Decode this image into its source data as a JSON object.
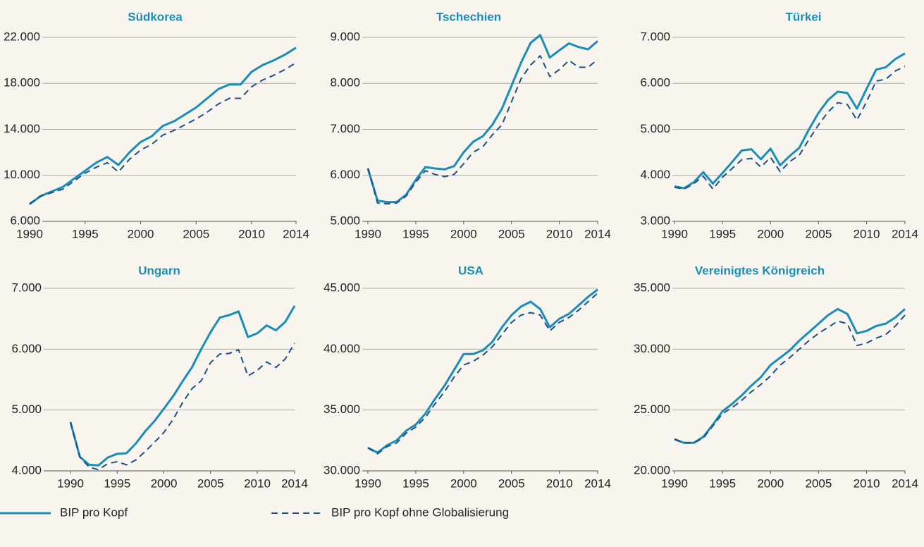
{
  "chart_data": [
    {
      "type": "line",
      "title": "Südkorea",
      "x": [
        1990,
        1991,
        1992,
        1993,
        1994,
        1995,
        1996,
        1997,
        1998,
        1999,
        2000,
        2001,
        2002,
        2003,
        2004,
        2005,
        2006,
        2007,
        2008,
        2009,
        2010,
        2011,
        2012,
        2013,
        2014
      ],
      "xlim": [
        1990,
        2014
      ],
      "xticks": [
        1990,
        1995,
        2000,
        2005,
        2010,
        2014
      ],
      "ylim": [
        6000,
        22000
      ],
      "yticks": [
        {
          "value": 6000,
          "label": "6.000"
        },
        {
          "value": 10000,
          "label": "10.000"
        },
        {
          "value": 14000,
          "label": "14.000"
        },
        {
          "value": 18000,
          "label": "18.000"
        },
        {
          "value": 22000,
          "label": "22.000"
        }
      ],
      "series": [
        {
          "color": "#1a8cb8",
          "line_style": "solid",
          "values": [
            7500,
            8200,
            8600,
            9000,
            9700,
            10400,
            11100,
            11600,
            10900,
            12000,
            12900,
            13400,
            14300,
            14700,
            15300,
            15900,
            16700,
            17500,
            17900,
            17900,
            19000,
            19600,
            20000,
            20500,
            21100
          ]
        },
        {
          "color": "#1e4f8a",
          "line_style": "dashed",
          "values": [
            7500,
            8200,
            8500,
            8800,
            9500,
            10200,
            10700,
            11100,
            10300,
            11400,
            12200,
            12700,
            13500,
            13900,
            14400,
            14900,
            15500,
            16200,
            16700,
            16700,
            17700,
            18300,
            18700,
            19200,
            19800
          ]
        }
      ]
    },
    {
      "type": "line",
      "title": "Tschechien",
      "x": [
        1990,
        1991,
        1992,
        1993,
        1994,
        1995,
        1996,
        1997,
        1998,
        1999,
        2000,
        2001,
        2002,
        2003,
        2004,
        2005,
        2006,
        2007,
        2008,
        2009,
        2010,
        2011,
        2012,
        2013,
        2014
      ],
      "xlim": [
        1990,
        2014
      ],
      "xticks": [
        1990,
        1995,
        2000,
        2005,
        2010,
        2014
      ],
      "ylim": [
        5000,
        9000
      ],
      "yticks": [
        {
          "value": 5000,
          "label": "5.000"
        },
        {
          "value": 6000,
          "label": "6.000"
        },
        {
          "value": 7000,
          "label": "7.000"
        },
        {
          "value": 8000,
          "label": "8.000"
        },
        {
          "value": 9000,
          "label": "9.000"
        }
      ],
      "series": [
        {
          "color": "#1a8cb8",
          "line_style": "solid",
          "values": [
            6150,
            5450,
            5420,
            5420,
            5580,
            5900,
            6180,
            6150,
            6130,
            6200,
            6500,
            6730,
            6850,
            7100,
            7450,
            7950,
            8450,
            8880,
            9050,
            8560,
            8720,
            8870,
            8790,
            8740,
            8920
          ]
        },
        {
          "color": "#1e4f8a",
          "line_style": "dashed",
          "values": [
            6150,
            5400,
            5380,
            5400,
            5550,
            5850,
            6100,
            6020,
            5970,
            6020,
            6250,
            6500,
            6620,
            6880,
            7100,
            7600,
            8100,
            8400,
            8600,
            8150,
            8300,
            8500,
            8350,
            8350,
            8520
          ]
        }
      ]
    },
    {
      "type": "line",
      "title": "Türkei",
      "x": [
        1990,
        1991,
        1992,
        1993,
        1994,
        1995,
        1996,
        1997,
        1998,
        1999,
        2000,
        2001,
        2002,
        2003,
        2004,
        2005,
        2006,
        2007,
        2008,
        2009,
        2010,
        2011,
        2012,
        2013,
        2014
      ],
      "xlim": [
        1990,
        2014
      ],
      "xticks": [
        1990,
        1995,
        2000,
        2005,
        2010,
        2014
      ],
      "ylim": [
        3000,
        7000
      ],
      "yticks": [
        {
          "value": 3000,
          "label": "3.000"
        },
        {
          "value": 4000,
          "label": "4.000"
        },
        {
          "value": 5000,
          "label": "5.000"
        },
        {
          "value": 6000,
          "label": "6.000"
        },
        {
          "value": 7000,
          "label": "7.000"
        }
      ],
      "series": [
        {
          "color": "#1a8cb8",
          "line_style": "solid",
          "values": [
            3760,
            3720,
            3850,
            4070,
            3820,
            4050,
            4290,
            4540,
            4570,
            4350,
            4580,
            4220,
            4420,
            4600,
            5000,
            5360,
            5640,
            5820,
            5790,
            5450,
            5880,
            6300,
            6350,
            6530,
            6650
          ]
        },
        {
          "color": "#1e4f8a",
          "line_style": "dashed",
          "values": [
            3740,
            3700,
            3820,
            3980,
            3700,
            3960,
            4150,
            4340,
            4370,
            4180,
            4390,
            4080,
            4300,
            4440,
            4780,
            5100,
            5380,
            5580,
            5540,
            5200,
            5600,
            6050,
            6090,
            6270,
            6370
          ]
        }
      ]
    },
    {
      "type": "line",
      "title": "Ungarn",
      "x": [
        1990,
        1991,
        1992,
        1993,
        1994,
        1995,
        1996,
        1997,
        1998,
        1999,
        2000,
        2001,
        2002,
        2003,
        2004,
        2005,
        2006,
        2007,
        2008,
        2009,
        2010,
        2011,
        2012,
        2013,
        2014
      ],
      "xlim": [
        1990,
        2014
      ],
      "xticks": [
        1990,
        1995,
        2000,
        2005,
        2010,
        2014
      ],
      "ylim": [
        4000,
        7000
      ],
      "yticks": [
        {
          "value": 4000,
          "label": "4.000"
        },
        {
          "value": 5000,
          "label": "5.000"
        },
        {
          "value": 6000,
          "label": "6.000"
        },
        {
          "value": 7000,
          "label": "7.000"
        }
      ],
      "series": [
        {
          "color": "#1a8cb8",
          "line_style": "solid",
          "values": [
            4800,
            4230,
            4100,
            4090,
            4220,
            4280,
            4290,
            4450,
            4650,
            4820,
            5020,
            5230,
            5470,
            5700,
            6000,
            6280,
            6520,
            6560,
            6620,
            6200,
            6260,
            6390,
            6310,
            6450,
            6710
          ]
        },
        {
          "color": "#1e4f8a",
          "line_style": "dashed",
          "values": [
            4800,
            4230,
            4060,
            4020,
            4120,
            4150,
            4100,
            4180,
            4320,
            4470,
            4630,
            4850,
            5120,
            5350,
            5480,
            5780,
            5920,
            5930,
            5990,
            5560,
            5650,
            5790,
            5700,
            5840,
            6100
          ]
        }
      ]
    },
    {
      "type": "line",
      "title": "USA",
      "x": [
        1990,
        1991,
        1992,
        1993,
        1994,
        1995,
        1996,
        1997,
        1998,
        1999,
        2000,
        2001,
        2002,
        2003,
        2004,
        2005,
        2006,
        2007,
        2008,
        2009,
        2010,
        2011,
        2012,
        2013,
        2014
      ],
      "xlim": [
        1990,
        2014
      ],
      "xticks": [
        1990,
        1995,
        2000,
        2005,
        2010,
        2014
      ],
      "ylim": [
        30000,
        45000
      ],
      "yticks": [
        {
          "value": 30000,
          "label": "30.000"
        },
        {
          "value": 35000,
          "label": "35.000"
        },
        {
          "value": 40000,
          "label": "40.000"
        },
        {
          "value": 45000,
          "label": "45.000"
        }
      ],
      "series": [
        {
          "color": "#1a8cb8",
          "line_style": "solid",
          "values": [
            31900,
            31500,
            32100,
            32500,
            33300,
            33800,
            34700,
            35900,
            37000,
            38300,
            39600,
            39600,
            39900,
            40600,
            41800,
            42800,
            43500,
            43900,
            43300,
            41800,
            42500,
            42900,
            43600,
            44300,
            44900
          ]
        },
        {
          "color": "#1e4f8a",
          "line_style": "dashed",
          "values": [
            31900,
            31400,
            32000,
            32300,
            33100,
            33600,
            34400,
            35500,
            36500,
            37700,
            38700,
            39000,
            39500,
            40200,
            41200,
            42200,
            42800,
            43000,
            42800,
            41500,
            42200,
            42600,
            43200,
            43900,
            44600
          ]
        }
      ]
    },
    {
      "type": "line",
      "title": "Vereinigtes Königreich",
      "x": [
        1990,
        1991,
        1992,
        1993,
        1994,
        1995,
        1996,
        1997,
        1998,
        1999,
        2000,
        2001,
        2002,
        2003,
        2004,
        2005,
        2006,
        2007,
        2008,
        2009,
        2010,
        2011,
        2012,
        2013,
        2014
      ],
      "xlim": [
        1990,
        2014
      ],
      "xticks": [
        1990,
        1995,
        2000,
        2005,
        2010,
        2014
      ],
      "ylim": [
        20000,
        35000
      ],
      "yticks": [
        {
          "value": 20000,
          "label": "20.000"
        },
        {
          "value": 25000,
          "label": "25.000"
        },
        {
          "value": 30000,
          "label": "30.000"
        },
        {
          "value": 35000,
          "label": "35.000"
        }
      ],
      "series": [
        {
          "color": "#1a8cb8",
          "line_style": "solid",
          "values": [
            22600,
            22300,
            22300,
            22800,
            23800,
            24900,
            25500,
            26200,
            27000,
            27700,
            28700,
            29300,
            29900,
            30700,
            31400,
            32100,
            32800,
            33300,
            32900,
            31300,
            31500,
            31900,
            32100,
            32600,
            33300
          ]
        },
        {
          "color": "#1e4f8a",
          "line_style": "dashed",
          "values": [
            22600,
            22300,
            22300,
            22700,
            23700,
            24700,
            25200,
            25800,
            26500,
            27100,
            27800,
            28700,
            29300,
            30000,
            30700,
            31300,
            31800,
            32300,
            32100,
            30300,
            30500,
            30900,
            31200,
            31900,
            32800
          ]
        }
      ]
    }
  ],
  "legend": [
    {
      "name": "BIP pro Kopf",
      "color": "#1a8cb8",
      "line_style": "solid"
    },
    {
      "name": "BIP pro Kopf ohne Globalisierung",
      "color": "#1e4f8a",
      "line_style": "dashed"
    }
  ]
}
